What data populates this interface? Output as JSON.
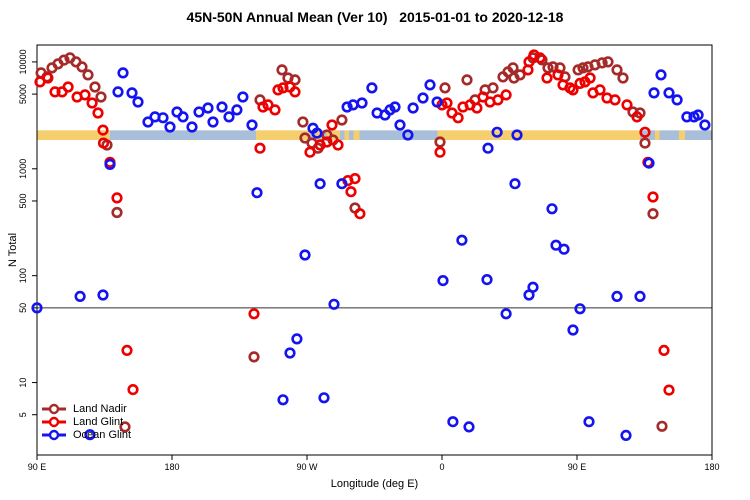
{
  "page": {
    "title": "45N-50N Annual Mean (Ver 10)   2015-01-01 to 2020-12-18"
  },
  "chart_data": {
    "type": "scatter",
    "title": "45N-50N Annual Mean (Ver 10)   2015-01-01 to 2020-12-18",
    "xlabel": "Longitude (deg E)",
    "ylabel": "N Total",
    "grid": false,
    "legend_position": "bottom-left-inside",
    "x_axis": {
      "range": [
        90,
        540
      ],
      "ticks": [
        90,
        180,
        270,
        360,
        450,
        540
      ],
      "tick_labels": [
        "90 E",
        "180",
        "90 W",
        "0",
        "90 E",
        "180"
      ],
      "note": "longitude wraps eastward from 90E through 180, 90W, 0, back to 90E and 180"
    },
    "y_axis": {
      "scale": "log",
      "range": [
        2.1,
        14400
      ],
      "ticks": [
        5,
        10,
        50,
        100,
        500,
        1000,
        5000,
        10000
      ],
      "tick_labels": [
        "5",
        "10",
        "50",
        "100",
        "500",
        "1000",
        "5000",
        "10000"
      ]
    },
    "reference_line": {
      "n": 50,
      "color": "#333333"
    },
    "surface_band": {
      "n_range": [
        1860,
        2290
      ],
      "colors": {
        "land": "#f5ce6e",
        "ocean": "#a9bed8"
      },
      "segments": [
        {
          "surface": "land",
          "from": 90,
          "to": 138.5
        },
        {
          "surface": "ocean",
          "from": 138.5,
          "to": 236
        },
        {
          "surface": "land",
          "from": 236,
          "to": 272
        },
        {
          "surface": "ocean",
          "from": 272,
          "to": 275
        },
        {
          "surface": "land",
          "from": 275,
          "to": 279
        },
        {
          "surface": "ocean",
          "from": 279,
          "to": 283
        },
        {
          "surface": "land",
          "from": 283,
          "to": 292
        },
        {
          "surface": "ocean",
          "from": 292,
          "to": 295
        },
        {
          "surface": "land",
          "from": 295,
          "to": 298
        },
        {
          "surface": "ocean",
          "from": 298,
          "to": 301
        },
        {
          "surface": "land",
          "from": 301,
          "to": 305
        },
        {
          "surface": "ocean",
          "from": 305,
          "to": 357
        },
        {
          "surface": "land",
          "from": 357,
          "to": 492
        },
        {
          "surface": "ocean",
          "from": 492,
          "to": 502
        },
        {
          "surface": "land",
          "from": 502,
          "to": 505
        },
        {
          "surface": "ocean",
          "from": 505,
          "to": 518
        },
        {
          "surface": "land",
          "from": 518,
          "to": 522
        },
        {
          "surface": "ocean",
          "from": 522,
          "to": 540
        }
      ]
    },
    "series": [
      {
        "name": "Land Nadir",
        "color": "#a52a2a",
        "points": [
          [
            92.7,
            7900
          ],
          [
            96.7,
            7240
          ],
          [
            100,
            8790
          ],
          [
            104,
            9580
          ],
          [
            108,
            10400
          ],
          [
            112,
            10900
          ],
          [
            116,
            10000
          ],
          [
            120,
            8980
          ],
          [
            124,
            7560
          ],
          [
            128.7,
            5830
          ],
          [
            132.7,
            4700
          ],
          [
            136.7,
            1670
          ],
          [
            143.3,
            390
          ],
          [
            148.7,
            3.85
          ],
          [
            234.7,
            17.4
          ],
          [
            238.7,
            4410
          ],
          [
            253.3,
            8420
          ],
          [
            257.3,
            7080
          ],
          [
            262,
            6790
          ],
          [
            267.3,
            2740
          ],
          [
            268.7,
            1940
          ],
          [
            273.3,
            1740
          ],
          [
            277.3,
            1560
          ],
          [
            283.3,
            2070
          ],
          [
            287.3,
            1860
          ],
          [
            293.3,
            2860
          ],
          [
            302,
            430
          ],
          [
            358.7,
            1780
          ],
          [
            362,
            5710
          ],
          [
            376.7,
            6790
          ],
          [
            382,
            4410
          ],
          [
            388.7,
            5470
          ],
          [
            394,
            5710
          ],
          [
            400.7,
            7240
          ],
          [
            404,
            8060
          ],
          [
            407.3,
            8790
          ],
          [
            408,
            7080
          ],
          [
            412,
            7560
          ],
          [
            420.7,
            10900
          ],
          [
            426.7,
            10440
          ],
          [
            430.7,
            8790
          ],
          [
            434,
            8980
          ],
          [
            438.7,
            8790
          ],
          [
            442,
            7240
          ],
          [
            450.7,
            8420
          ],
          [
            454,
            8790
          ],
          [
            457.3,
            8980
          ],
          [
            462,
            9370
          ],
          [
            466.7,
            9790
          ],
          [
            470.7,
            10000
          ],
          [
            476.7,
            8420
          ],
          [
            480.7,
            7080
          ],
          [
            487.3,
            3400
          ],
          [
            492,
            3330
          ],
          [
            495.3,
            1740
          ],
          [
            500.7,
            380
          ],
          [
            506.7,
            3.9
          ]
        ]
      },
      {
        "name": "Land Glint",
        "color": "#ee0000",
        "points": [
          [
            92,
            6500
          ],
          [
            97.3,
            7080
          ],
          [
            102,
            5240
          ],
          [
            106.7,
            5240
          ],
          [
            110.7,
            5830
          ],
          [
            116.7,
            4700
          ],
          [
            122,
            4910
          ],
          [
            126.7,
            4130
          ],
          [
            130.7,
            3330
          ],
          [
            134,
            2300
          ],
          [
            134.3,
            1740
          ],
          [
            138.7,
            1150
          ],
          [
            143.3,
            534
          ],
          [
            150,
            20
          ],
          [
            154,
            8.6
          ],
          [
            234.7,
            44
          ],
          [
            238.7,
            1560
          ],
          [
            240.7,
            3790
          ],
          [
            244,
            3960
          ],
          [
            248.7,
            3560
          ],
          [
            250.7,
            5470
          ],
          [
            254,
            5710
          ],
          [
            258.7,
            5830
          ],
          [
            262,
            5240
          ],
          [
            272,
            1430
          ],
          [
            278.7,
            1670
          ],
          [
            283.3,
            1780
          ],
          [
            286.7,
            2570
          ],
          [
            290.7,
            1670
          ],
          [
            297.3,
            775
          ],
          [
            299.3,
            610
          ],
          [
            302,
            810
          ],
          [
            305.3,
            380
          ],
          [
            358.7,
            1430
          ],
          [
            360,
            3960
          ],
          [
            363.3,
            4130
          ],
          [
            366.7,
            3330
          ],
          [
            370.7,
            3000
          ],
          [
            374,
            3790
          ],
          [
            378.7,
            3960
          ],
          [
            383.3,
            3710
          ],
          [
            387.3,
            4700
          ],
          [
            392,
            4220
          ],
          [
            397.3,
            4410
          ],
          [
            402.7,
            4910
          ],
          [
            417.3,
            8420
          ],
          [
            418,
            10000
          ],
          [
            421.3,
            11600
          ],
          [
            425.3,
            10900
          ],
          [
            430,
            7080
          ],
          [
            437.3,
            7560
          ],
          [
            440.7,
            6090
          ],
          [
            445.3,
            5710
          ],
          [
            447.3,
            5470
          ],
          [
            452,
            6300
          ],
          [
            455.3,
            6500
          ],
          [
            458.7,
            7080
          ],
          [
            460.7,
            5130
          ],
          [
            465.3,
            5470
          ],
          [
            470,
            4600
          ],
          [
            475.3,
            4410
          ],
          [
            483.3,
            3960
          ],
          [
            490,
            3060
          ],
          [
            495.3,
            2200
          ],
          [
            497.3,
            1150
          ],
          [
            500.7,
            545
          ],
          [
            508,
            20
          ],
          [
            511.3,
            8.5
          ]
        ]
      },
      {
        "name": "Ocean Glint",
        "color": "#1414f0",
        "points": [
          [
            90,
            50
          ],
          [
            118.7,
            64
          ],
          [
            125.3,
            3.25
          ],
          [
            134,
            66
          ],
          [
            138.7,
            1100
          ],
          [
            144,
            5240
          ],
          [
            147.3,
            7890
          ],
          [
            153.3,
            5130
          ],
          [
            157.3,
            4220
          ],
          [
            164,
            2740
          ],
          [
            168.7,
            3060
          ],
          [
            174,
            3000
          ],
          [
            178.7,
            2460
          ],
          [
            183.3,
            3400
          ],
          [
            187.3,
            3060
          ],
          [
            193.3,
            2460
          ],
          [
            198,
            3400
          ],
          [
            204,
            3710
          ],
          [
            207.3,
            2740
          ],
          [
            213.3,
            3790
          ],
          [
            218,
            3060
          ],
          [
            223.3,
            3560
          ],
          [
            227.3,
            4700
          ],
          [
            233.3,
            2570
          ],
          [
            236.7,
            597
          ],
          [
            254,
            6.9
          ],
          [
            258.7,
            18.9
          ],
          [
            263.3,
            25.6
          ],
          [
            268.7,
            156
          ],
          [
            274,
            2400
          ],
          [
            276.7,
            2160
          ],
          [
            278.7,
            725
          ],
          [
            281.3,
            7.2
          ],
          [
            288,
            54
          ],
          [
            293.3,
            725
          ],
          [
            296.7,
            3790
          ],
          [
            300.7,
            3960
          ],
          [
            306.7,
            4130
          ],
          [
            313.3,
            5710
          ],
          [
            316.7,
            3330
          ],
          [
            322,
            3190
          ],
          [
            325.3,
            3560
          ],
          [
            328.7,
            3790
          ],
          [
            332,
            2570
          ],
          [
            337.3,
            2070
          ],
          [
            340.7,
            3710
          ],
          [
            347.3,
            4600
          ],
          [
            352,
            6090
          ],
          [
            356.7,
            4220
          ],
          [
            360.7,
            90
          ],
          [
            367.3,
            4.3
          ],
          [
            373.3,
            215
          ],
          [
            378,
            3.85
          ],
          [
            390,
            92
          ],
          [
            390.7,
            1560
          ],
          [
            396.7,
            2200
          ],
          [
            402.7,
            44
          ],
          [
            408.7,
            725
          ],
          [
            410,
            2070
          ],
          [
            418,
            66
          ],
          [
            420.7,
            78
          ],
          [
            433.3,
            422
          ],
          [
            436,
            193
          ],
          [
            441.3,
            177
          ],
          [
            447.3,
            31
          ],
          [
            452,
            49
          ],
          [
            458,
            4.3
          ],
          [
            476.7,
            64
          ],
          [
            482.7,
            3.2
          ],
          [
            492,
            64
          ],
          [
            498,
            1130
          ],
          [
            501.3,
            5130
          ],
          [
            506,
            7560
          ],
          [
            511.3,
            5130
          ],
          [
            516.7,
            4410
          ],
          [
            523.3,
            3060
          ],
          [
            528,
            3060
          ],
          [
            530.7,
            3190
          ],
          [
            535.3,
            2570
          ]
        ]
      }
    ]
  }
}
